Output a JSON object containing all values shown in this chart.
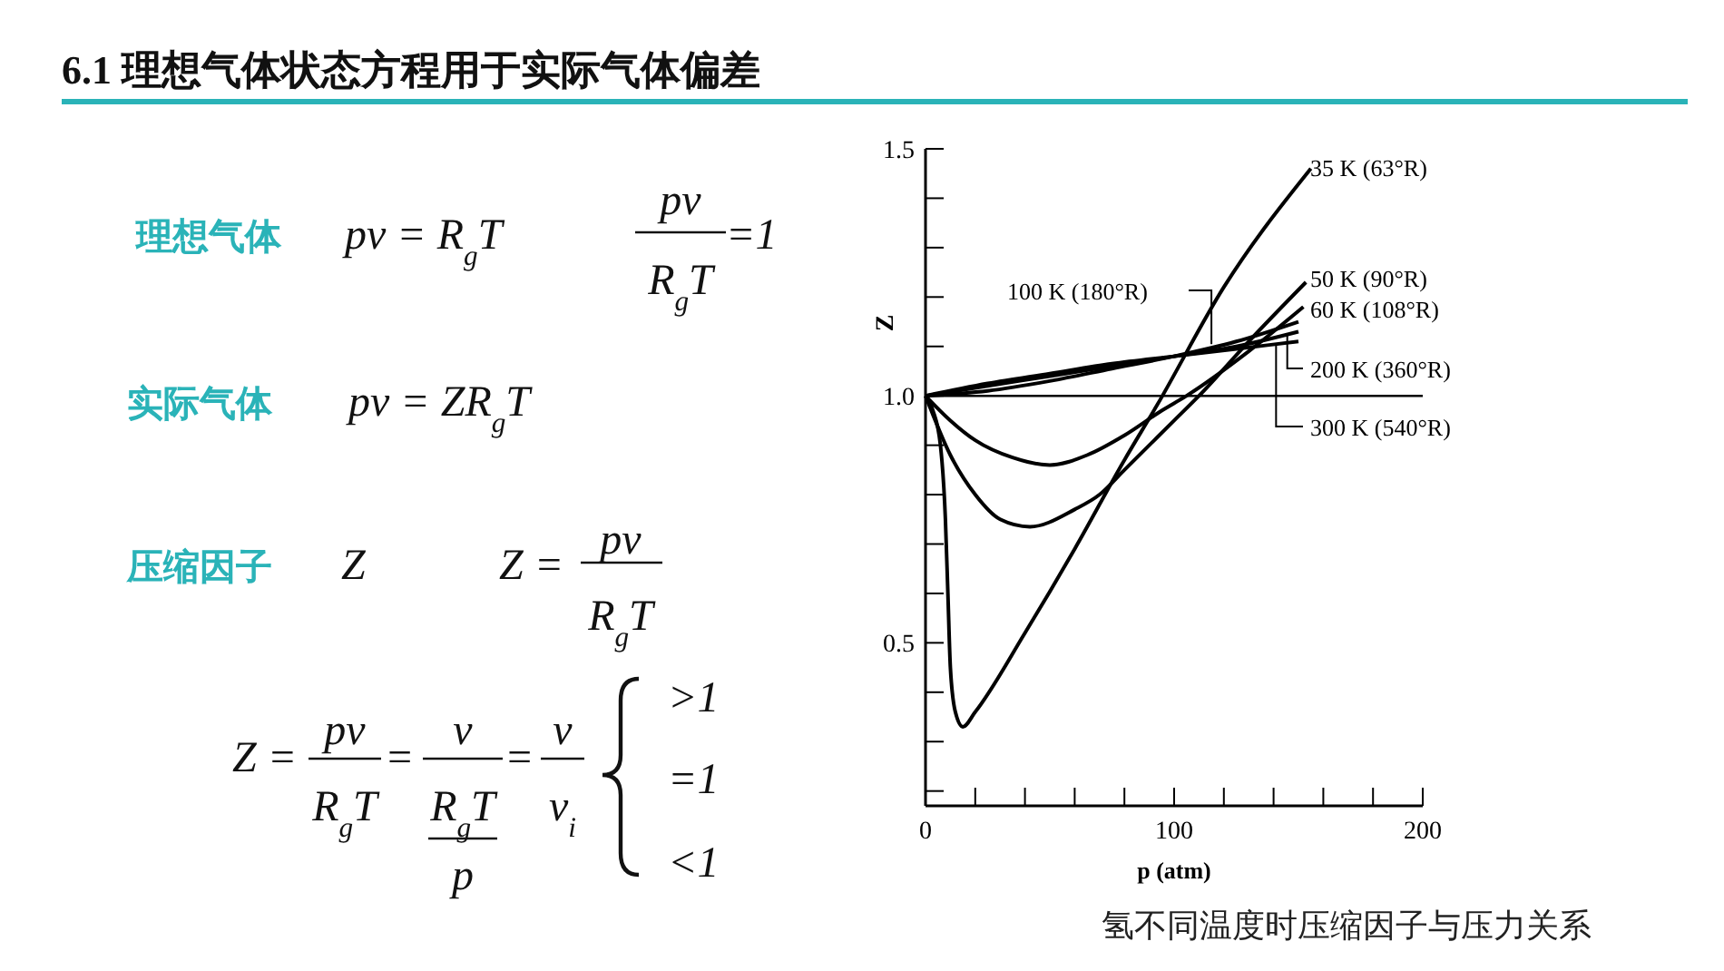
{
  "chart_data": [
    {
      "type": "other",
      "title": "6.1  理想气体状态方程用于实际气体偏差",
      "annotations": [
        "理想气体",
        "pv = R$_{g}$T",
        "pv",
        "R$_{g}$T",
        "=1",
        "实际气体",
        "pv = ZR$_{g}$T",
        "压缩因子",
        "Z",
        "Z =",
        "pv",
        "R$_{g}$T",
        "Z =",
        "pv",
        "R$_{g}$T",
        "=",
        "v",
        "R$_{g}$T",
        "p",
        "=",
        "v",
        "v$_{i}$",
        ">1",
        "=1",
        "<1"
      ]
    },
    {
      "type": "line",
      "xlabel": "p (atm)",
      "ylabel": "Z",
      "xlim": [
        0,
        200
      ],
      "ylim": [
        0.17,
        1.5
      ],
      "xticks": [
        0,
        {
          "value": 20,
          "label": null
        },
        {
          "value": 40,
          "label": null
        },
        {
          "value": 60,
          "label": null
        },
        {
          "value": 80,
          "label": null
        },
        100,
        {
          "value": 120,
          "label": null
        },
        {
          "value": 140,
          "label": null
        },
        {
          "value": 160,
          "label": null
        },
        {
          "value": 180,
          "label": null
        },
        200
      ],
      "yticks": [
        {
          "value": 0.2,
          "label": null
        },
        {
          "value": 0.3,
          "label": null
        },
        {
          "value": 0.4,
          "label": null
        },
        0.5,
        {
          "value": 0.6,
          "label": null
        },
        {
          "value": 0.7,
          "label": null
        },
        {
          "value": 0.8,
          "label": null
        },
        {
          "value": 0.9,
          "label": null
        },
        {
          "value": 1,
          "label": "1.0"
        },
        {
          "value": 1.1,
          "label": null
        },
        {
          "value": 1.2,
          "label": null
        },
        {
          "value": 1.3,
          "label": null
        },
        {
          "value": 1.4,
          "label": null
        },
        1.5
      ],
      "ref_lines": [
        {
          "axis": "y",
          "value": 1,
          "color": "#000000"
        }
      ],
      "series": [
        {
          "name": "35 K (63°R)",
          "color": "#000000",
          "x": [
            0,
            3,
            6,
            8,
            9,
            10,
            12,
            15,
            20,
            40,
            60,
            80,
            93,
            120,
            155
          ],
          "values": [
            1,
            0.97,
            0.9,
            0.75,
            0.6,
            0.45,
            0.36,
            0.33,
            0.36,
            0.52,
            0.69,
            0.87,
            0.98,
            1.22,
            1.46
          ]
        },
        {
          "name": "50 K (90°R)",
          "color": "#000000",
          "x": [
            0,
            10,
            20,
            30,
            42,
            60,
            70,
            80,
            100,
            110,
            130,
            153
          ],
          "values": [
            1,
            0.88,
            0.8,
            0.75,
            0.735,
            0.77,
            0.8,
            0.85,
            0.95,
            1.0,
            1.11,
            1.23
          ]
        },
        {
          "name": "60 K (108°R)",
          "color": "#000000",
          "x": [
            0,
            10,
            20,
            35,
            50,
            65,
            80,
            95,
            105,
            130,
            152
          ],
          "values": [
            1,
            0.95,
            0.91,
            0.875,
            0.86,
            0.88,
            0.92,
            0.97,
            1.0,
            1.09,
            1.18
          ]
        },
        {
          "name": "100 K (180°R)",
          "color": "#000000",
          "x": [
            0,
            25,
            50,
            75,
            100,
            125,
            150
          ],
          "values": [
            1,
            1.01,
            1.03,
            1.055,
            1.08,
            1.11,
            1.15
          ]
        },
        {
          "name": "200 K (360°R)",
          "color": "#000000",
          "x": [
            0,
            25,
            50,
            75,
            100,
            125,
            150
          ],
          "values": [
            1,
            1.02,
            1.04,
            1.06,
            1.08,
            1.1,
            1.13
          ]
        },
        {
          "name": "300 K (540°R)",
          "color": "#000000",
          "x": [
            0,
            25,
            50,
            75,
            100,
            125,
            150
          ],
          "values": [
            1,
            1.025,
            1.045,
            1.065,
            1.08,
            1.095,
            1.11
          ]
        }
      ],
      "annotations": [
        "氢不同温度时压缩因子与压力关系"
      ]
    }
  ]
}
